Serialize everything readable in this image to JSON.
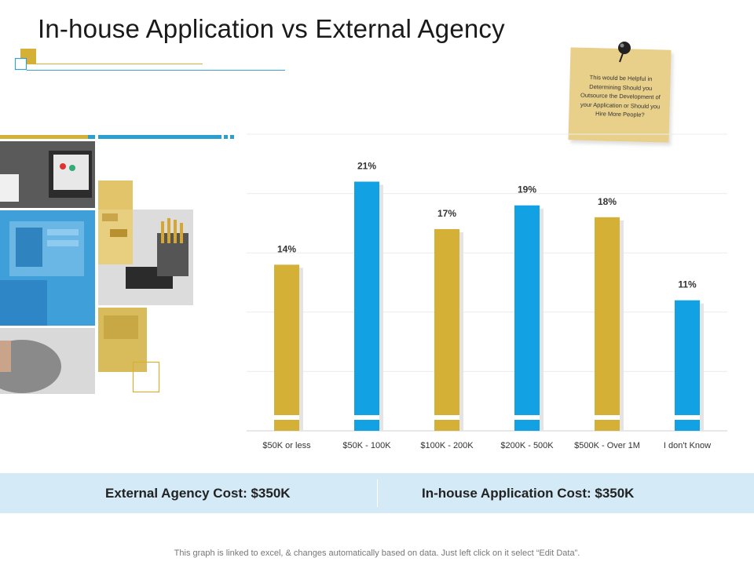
{
  "title": "In-house Application vs External Agency",
  "note": {
    "text": "This would be Helpful in Determining Should you Outsource the Development of your Application or Should you Hire More People?"
  },
  "chart_data": {
    "type": "bar",
    "categories": [
      "$50K or less",
      "$50K - 100K",
      "$100K - 200K",
      "$200K - 500K",
      "$500K - Over 1M",
      "I don't Know"
    ],
    "values": [
      14,
      21,
      17,
      19,
      18,
      11
    ],
    "labels": [
      "14%",
      "21%",
      "17%",
      "19%",
      "18%",
      "11%"
    ],
    "unit": "%",
    "ylim": [
      0,
      25
    ],
    "grid": true,
    "colors": [
      "#d4b037",
      "#12a1e3",
      "#d4b037",
      "#12a1e3",
      "#d4b037",
      "#12a1e3"
    ]
  },
  "costs": {
    "external": "External Agency Cost: $350K",
    "inhouse": "In-house Application Cost: $350K"
  },
  "footer": "This graph is linked to excel, & changes automatically based on data. Just left click on it select “Edit Data”.",
  "colors": {
    "gold": "#d4b037",
    "blue": "#12a1e3",
    "band": "#d4eaf6"
  }
}
